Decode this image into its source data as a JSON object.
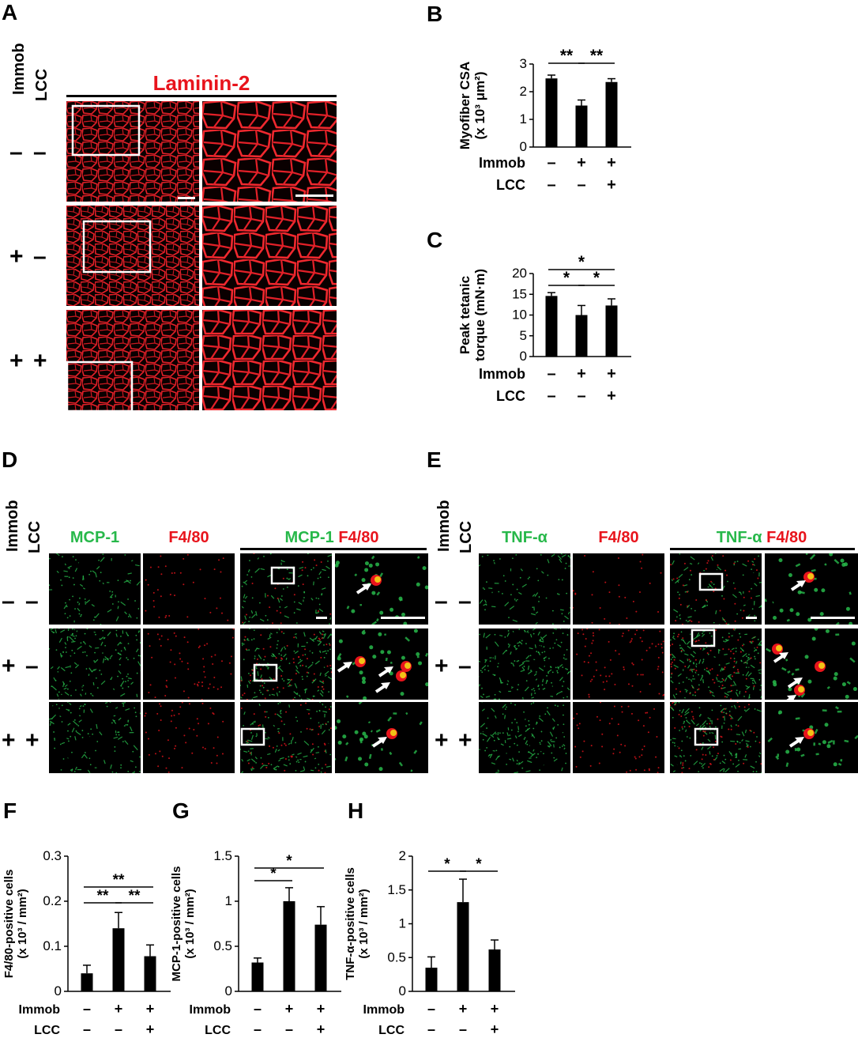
{
  "panel_labels": {
    "A": "A",
    "B": "B",
    "C": "C",
    "D": "D",
    "E": "E",
    "F": "F",
    "G": "G",
    "H": "H"
  },
  "row_headers": {
    "immob": "Immob",
    "lcc": "LCC"
  },
  "row_signs": [
    [
      "–",
      "–"
    ],
    [
      "+",
      "–"
    ],
    [
      "+",
      "+"
    ]
  ],
  "colors": {
    "red": "#e8141c",
    "green": "#27b84a",
    "black": "#000000",
    "white": "#ffffff"
  },
  "panel_A": {
    "stain_label": "Laminin-2"
  },
  "panel_D": {
    "col1": "MCP-1",
    "col2": "F4/80",
    "merge_green": "MCP-1",
    "merge_red": "F4/80"
  },
  "panel_E": {
    "col1": "TNF-α",
    "col2": "F4/80",
    "merge_green": "TNF-α",
    "merge_red": "F4/80"
  },
  "icons": [
    "scale-bar",
    "white-arrow",
    "roi-box"
  ],
  "chart_data": [
    {
      "id": "B",
      "type": "bar",
      "ylabel": "Myofiber CSA",
      "ylabel_unit": "(x 10³ μm²)",
      "ylim": [
        0,
        3
      ],
      "yticks": [
        0,
        1,
        2,
        3
      ],
      "values": [
        2.48,
        1.5,
        2.35
      ],
      "errors": [
        0.12,
        0.2,
        0.12
      ],
      "immob": [
        "–",
        "+",
        "+"
      ],
      "lcc": [
        "–",
        "–",
        "+"
      ],
      "sig": [
        {
          "from": 0,
          "to": 1,
          "label": "**"
        },
        {
          "from": 1,
          "to": 2,
          "label": "**"
        }
      ]
    },
    {
      "id": "C",
      "type": "bar",
      "ylabel": "Peak tetanic",
      "ylabel_unit": "torque (mN·m)",
      "ylim": [
        0,
        20
      ],
      "yticks": [
        0,
        5,
        10,
        15,
        20
      ],
      "values": [
        14.6,
        10.0,
        12.3
      ],
      "errors": [
        0.8,
        2.3,
        1.6
      ],
      "immob": [
        "–",
        "+",
        "+"
      ],
      "lcc": [
        "–",
        "–",
        "+"
      ],
      "sig": [
        {
          "from": 0,
          "to": 1,
          "label": "*"
        },
        {
          "from": 1,
          "to": 2,
          "label": "*"
        },
        {
          "from": 0,
          "to": 2,
          "label": "*"
        }
      ]
    },
    {
      "id": "F",
      "type": "bar",
      "ylabel": "F4/80-positive cells",
      "ylabel_unit": "(x 10³ / mm²)",
      "ylim": [
        0,
        0.3
      ],
      "yticks": [
        0,
        0.1,
        0.2,
        0.3
      ],
      "tick_labels": [
        "0",
        "0.1",
        "0.2",
        "0.3"
      ],
      "values": [
        0.04,
        0.14,
        0.078
      ],
      "errors": [
        0.018,
        0.035,
        0.025
      ],
      "immob": [
        "–",
        "+",
        "+"
      ],
      "lcc": [
        "–",
        "–",
        "+"
      ],
      "sig": [
        {
          "from": 0,
          "to": 1,
          "label": "**"
        },
        {
          "from": 1,
          "to": 2,
          "label": "**"
        },
        {
          "from": 0,
          "to": 2,
          "label": "**"
        }
      ]
    },
    {
      "id": "G",
      "type": "bar",
      "ylabel": "MCP-1-positive cells",
      "ylabel_unit": "(x 10³ / mm²)",
      "ylim": [
        0,
        1.5
      ],
      "yticks": [
        0,
        0.5,
        1,
        1.5
      ],
      "tick_labels": [
        "0",
        "0.5",
        "1",
        "1.5"
      ],
      "values": [
        0.32,
        1.0,
        0.74
      ],
      "errors": [
        0.05,
        0.15,
        0.2
      ],
      "immob": [
        "–",
        "+",
        "+"
      ],
      "lcc": [
        "–",
        "–",
        "+"
      ],
      "sig": [
        {
          "from": 0,
          "to": 1,
          "label": "*"
        },
        {
          "from": 0,
          "to": 2,
          "label": "*"
        }
      ]
    },
    {
      "id": "H",
      "type": "bar",
      "ylabel": "TNF-α-positive cells",
      "ylabel_unit": "(x 10³ / mm²)",
      "ylim": [
        0,
        2
      ],
      "yticks": [
        0,
        0.5,
        1,
        1.5,
        2
      ],
      "tick_labels": [
        "0",
        "0.5",
        "1",
        "1.5",
        "2"
      ],
      "values": [
        0.35,
        1.32,
        0.62
      ],
      "errors": [
        0.16,
        0.34,
        0.14
      ],
      "immob": [
        "–",
        "+",
        "+"
      ],
      "lcc": [
        "–",
        "–",
        "+"
      ],
      "sig": [
        {
          "from": 0,
          "to": 1,
          "label": "*"
        },
        {
          "from": 1,
          "to": 2,
          "label": "*"
        }
      ]
    }
  ]
}
